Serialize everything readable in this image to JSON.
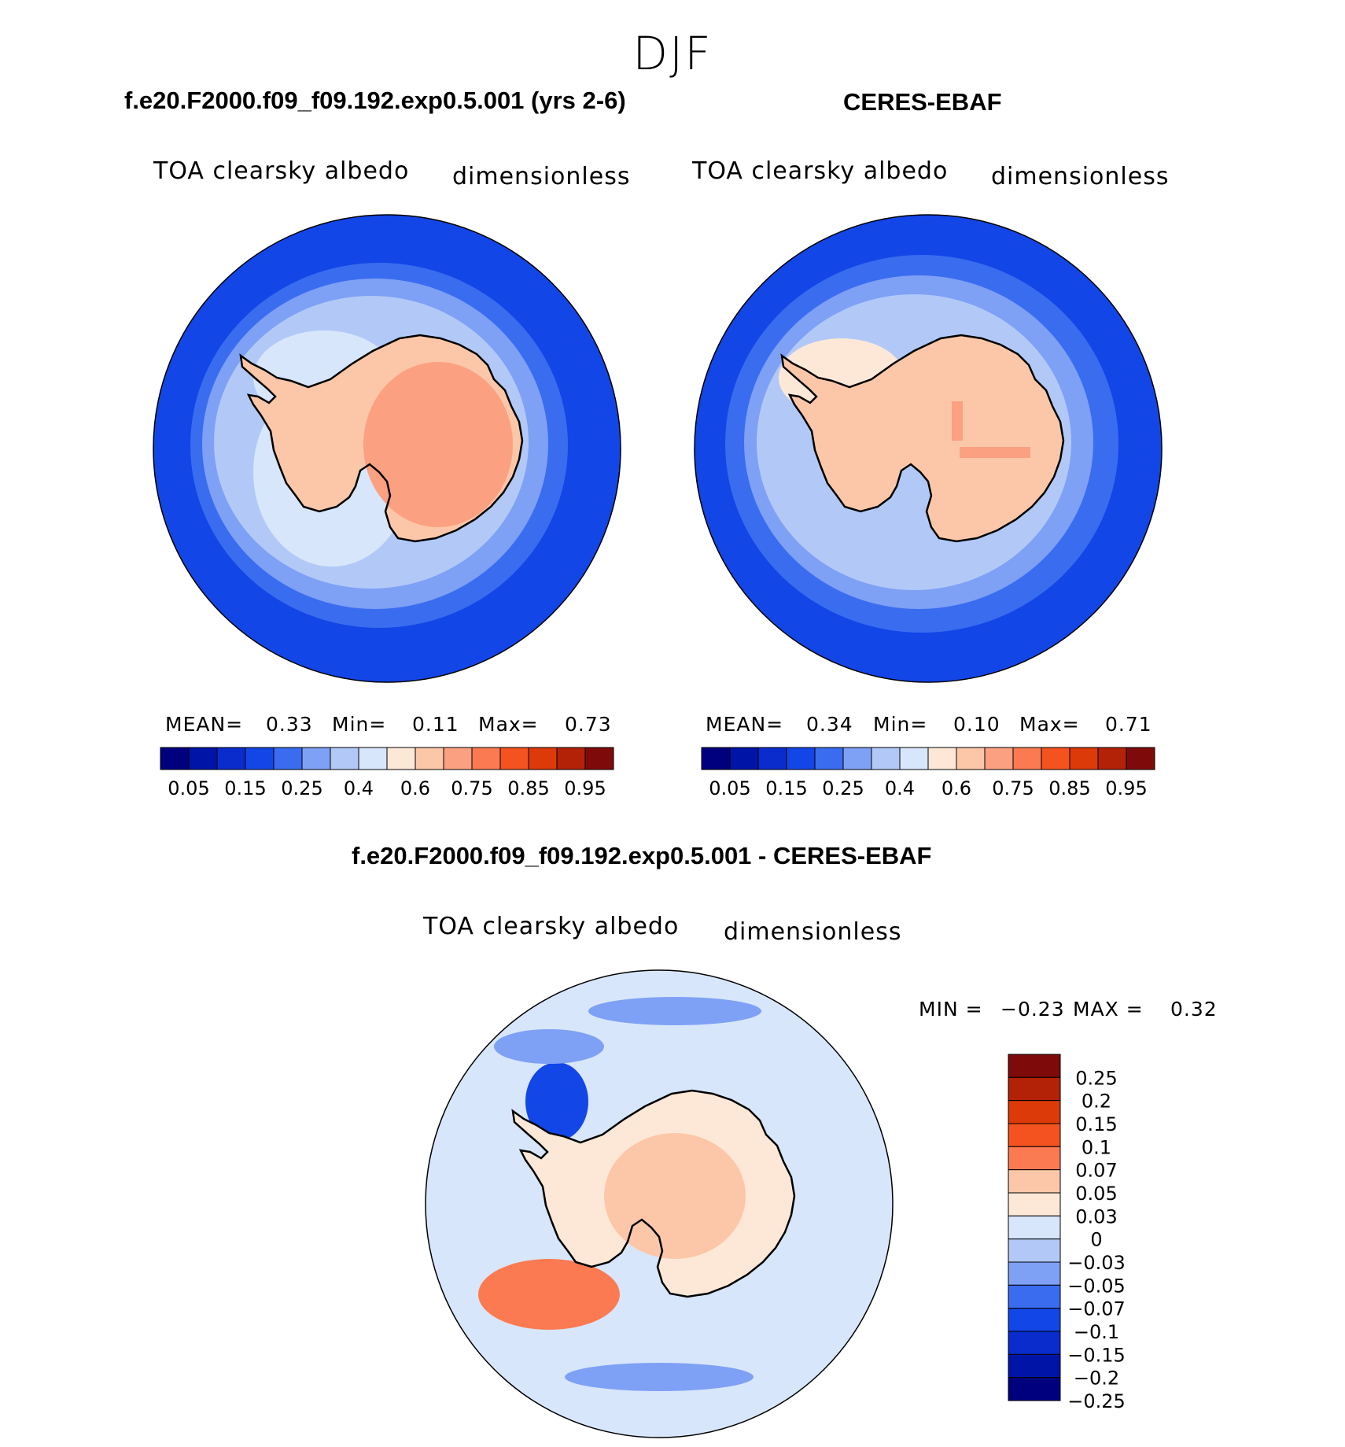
{
  "page": {
    "season": "DJF"
  },
  "panels": [
    {
      "title": "f.e20.F2000.f09_f09.192.exp0.5.001 (yrs 2-6)",
      "variable": "TOA clearsky albedo",
      "units": "dimensionless",
      "stats": {
        "mean_label": "MEAN=",
        "mean": "0.33",
        "min_label": "Min=",
        "min": "0.11",
        "max_label": "Max=",
        "max": "0.73"
      }
    },
    {
      "title": "CERES-EBAF",
      "variable": "TOA clearsky albedo",
      "units": "dimensionless",
      "stats": {
        "mean_label": "MEAN=",
        "mean": "0.34",
        "min_label": "Min=",
        "min": "0.10",
        "max_label": "Max=",
        "max": "0.71"
      }
    }
  ],
  "diff_panel": {
    "title": "f.e20.F2000.f09_f09.192.exp0.5.001 - CERES-EBAF",
    "variable": "TOA clearsky albedo",
    "units": "dimensionless",
    "min_label": "MIN =",
    "min": "−0.23",
    "max_label": "MAX =",
    "max": "0.32"
  },
  "colorbar_abs": {
    "colors": [
      "#00007f",
      "#0014a8",
      "#0a2ccd",
      "#1346e6",
      "#3a6cf0",
      "#7ea0f5",
      "#b2c9f8",
      "#d8e6fb",
      "#fde8d8",
      "#fcc7a8",
      "#fca082",
      "#fb7a51",
      "#f4521e",
      "#dc3a08",
      "#b32207",
      "#7f0a0a"
    ],
    "labels": [
      "0.05",
      "0.15",
      "0.25",
      "0.4",
      "0.6",
      "0.75",
      "0.85",
      "0.95"
    ]
  },
  "colorbar_diff": {
    "colors_top_to_bottom": [
      "#7f0a0a",
      "#b32207",
      "#dc3a08",
      "#f4521e",
      "#fb7a51",
      "#fcc7a8",
      "#fde8d8",
      "#d8e6fb",
      "#b2c9f8",
      "#7ea0f5",
      "#3a6cf0",
      "#1346e6",
      "#0a2ccd",
      "#0014a8",
      "#00007f"
    ],
    "labels": [
      "0.25",
      "0.2",
      "0.15",
      "0.1",
      "0.07",
      "0.05",
      "0.03",
      "0",
      "−0.03",
      "−0.05",
      "−0.07",
      "−0.1",
      "−0.15",
      "−0.2",
      "−0.25"
    ]
  },
  "chart_data": [
    {
      "type": "heatmap",
      "projection": "south polar stereographic",
      "title": "f.e20.F2000.f09_f09.192.exp0.5.001 (yrs 2-6)",
      "field": "TOA clearsky albedo",
      "units": "dimensionless",
      "mean": 0.33,
      "min": 0.11,
      "max": 0.73,
      "levels": [
        0.05,
        0.1,
        0.15,
        0.2,
        0.25,
        0.3,
        0.4,
        0.5,
        0.6,
        0.7,
        0.75,
        0.8,
        0.85,
        0.9,
        0.95
      ]
    },
    {
      "type": "heatmap",
      "projection": "south polar stereographic",
      "title": "CERES-EBAF",
      "field": "TOA clearsky albedo",
      "units": "dimensionless",
      "mean": 0.34,
      "min": 0.1,
      "max": 0.71,
      "levels": [
        0.05,
        0.1,
        0.15,
        0.2,
        0.25,
        0.3,
        0.4,
        0.5,
        0.6,
        0.7,
        0.75,
        0.8,
        0.85,
        0.9,
        0.95
      ]
    },
    {
      "type": "heatmap",
      "projection": "south polar stereographic",
      "title": "f.e20.F2000.f09_f09.192.exp0.5.001 - CERES-EBAF",
      "field": "TOA clearsky albedo difference",
      "units": "dimensionless",
      "min": -0.23,
      "max": 0.32,
      "levels": [
        -0.25,
        -0.2,
        -0.15,
        -0.1,
        -0.07,
        -0.05,
        -0.03,
        0,
        0.03,
        0.05,
        0.07,
        0.1,
        0.15,
        0.2,
        0.25
      ]
    }
  ]
}
